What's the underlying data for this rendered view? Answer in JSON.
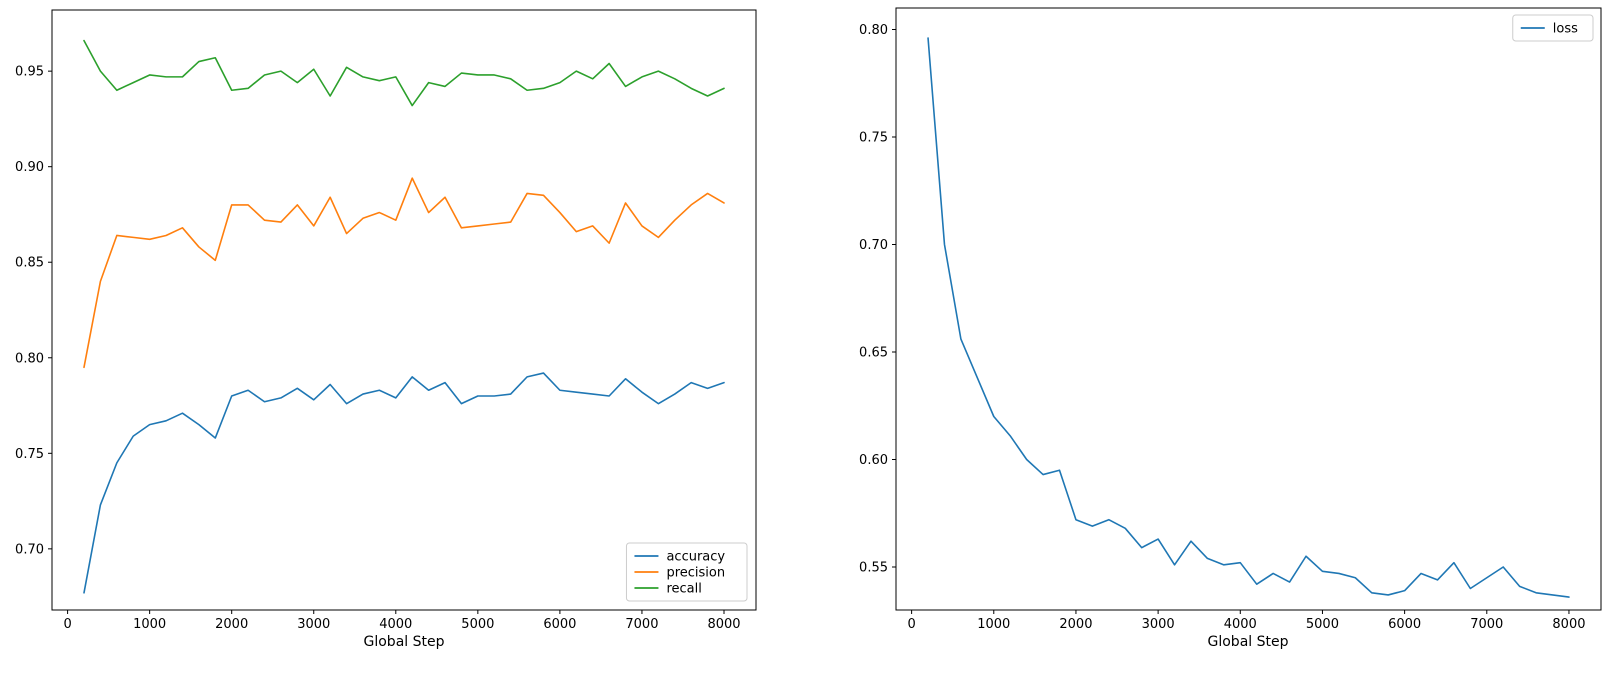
{
  "figure": {
    "background": "#ffffff",
    "text_color": "#000000",
    "spine_color": "#000000",
    "legend_border_color": "#cccccc"
  },
  "chart_data": [
    {
      "type": "line",
      "title": "",
      "xlabel": "Global Step",
      "ylabel": "",
      "grid": false,
      "xlim": [
        -190,
        8390
      ],
      "ylim": [
        0.668,
        0.982
      ],
      "xticks": [
        0,
        1000,
        2000,
        3000,
        4000,
        5000,
        6000,
        7000,
        8000
      ],
      "xtick_labels": [
        "0",
        "1000",
        "2000",
        "3000",
        "4000",
        "5000",
        "6000",
        "7000",
        "8000"
      ],
      "yticks": [
        0.7,
        0.75,
        0.8,
        0.85,
        0.9,
        0.95
      ],
      "ytick_labels": [
        "0.70",
        "0.75",
        "0.80",
        "0.85",
        "0.90",
        "0.95"
      ],
      "legend": {
        "position": "lower right",
        "entries": [
          "accuracy",
          "precision",
          "recall"
        ]
      },
      "x": [
        200,
        400,
        600,
        800,
        1000,
        1200,
        1400,
        1600,
        1800,
        2000,
        2200,
        2400,
        2600,
        2800,
        3000,
        3200,
        3400,
        3600,
        3800,
        4000,
        4200,
        4400,
        4600,
        4800,
        5000,
        5200,
        5400,
        5600,
        5800,
        6000,
        6200,
        6400,
        6600,
        6800,
        7000,
        7200,
        7400,
        7600,
        7800,
        8000
      ],
      "series": [
        {
          "name": "accuracy",
          "color": "#1f77b4",
          "values": [
            0.677,
            0.723,
            0.745,
            0.759,
            0.765,
            0.767,
            0.771,
            0.765,
            0.758,
            0.78,
            0.783,
            0.777,
            0.779,
            0.784,
            0.778,
            0.786,
            0.776,
            0.781,
            0.783,
            0.779,
            0.79,
            0.783,
            0.787,
            0.776,
            0.78,
            0.78,
            0.781,
            0.79,
            0.792,
            0.783,
            0.782,
            0.781,
            0.78,
            0.789,
            0.782,
            0.776,
            0.781,
            0.787,
            0.784,
            0.787
          ]
        },
        {
          "name": "precision",
          "color": "#ff7f0e",
          "values": [
            0.795,
            0.84,
            0.864,
            0.863,
            0.862,
            0.864,
            0.868,
            0.858,
            0.851,
            0.88,
            0.88,
            0.872,
            0.871,
            0.88,
            0.869,
            0.884,
            0.865,
            0.873,
            0.876,
            0.872,
            0.894,
            0.876,
            0.884,
            0.868,
            0.869,
            0.87,
            0.871,
            0.886,
            0.885,
            0.876,
            0.866,
            0.869,
            0.86,
            0.881,
            0.869,
            0.863,
            0.872,
            0.88,
            0.886,
            0.881
          ]
        },
        {
          "name": "recall",
          "color": "#2ca02c",
          "values": [
            0.966,
            0.95,
            0.94,
            0.944,
            0.948,
            0.947,
            0.947,
            0.955,
            0.957,
            0.94,
            0.941,
            0.948,
            0.95,
            0.944,
            0.951,
            0.937,
            0.952,
            0.947,
            0.945,
            0.947,
            0.932,
            0.944,
            0.942,
            0.949,
            0.948,
            0.948,
            0.946,
            0.94,
            0.941,
            0.944,
            0.95,
            0.946,
            0.954,
            0.942,
            0.947,
            0.95,
            0.946,
            0.941,
            0.937,
            0.941
          ]
        }
      ]
    },
    {
      "type": "line",
      "title": "",
      "xlabel": "Global Step",
      "ylabel": "",
      "grid": false,
      "xlim": [
        -190,
        8390
      ],
      "ylim": [
        0.53,
        0.81
      ],
      "xticks": [
        0,
        1000,
        2000,
        3000,
        4000,
        5000,
        6000,
        7000,
        8000
      ],
      "xtick_labels": [
        "0",
        "1000",
        "2000",
        "3000",
        "4000",
        "5000",
        "6000",
        "7000",
        "8000"
      ],
      "yticks": [
        0.55,
        0.6,
        0.65,
        0.7,
        0.75,
        0.8
      ],
      "ytick_labels": [
        "0.55",
        "0.60",
        "0.65",
        "0.70",
        "0.75",
        "0.80"
      ],
      "legend": {
        "position": "upper right",
        "entries": [
          "loss"
        ]
      },
      "x": [
        200,
        400,
        600,
        800,
        1000,
        1200,
        1400,
        1600,
        1800,
        2000,
        2200,
        2400,
        2600,
        2800,
        3000,
        3200,
        3400,
        3600,
        3800,
        4000,
        4200,
        4400,
        4600,
        4800,
        5000,
        5200,
        5400,
        5600,
        5800,
        6000,
        6200,
        6400,
        6600,
        6800,
        7000,
        7200,
        7400,
        7600,
        7800,
        8000
      ],
      "series": [
        {
          "name": "loss",
          "color": "#1f77b4",
          "values": [
            0.796,
            0.7,
            0.656,
            0.638,
            0.62,
            0.611,
            0.6,
            0.593,
            0.595,
            0.572,
            0.569,
            0.572,
            0.568,
            0.559,
            0.563,
            0.551,
            0.562,
            0.554,
            0.551,
            0.552,
            0.542,
            0.547,
            0.543,
            0.555,
            0.548,
            0.547,
            0.545,
            0.538,
            0.537,
            0.539,
            0.547,
            0.544,
            0.552,
            0.54,
            0.545,
            0.55,
            0.541,
            0.538,
            0.537,
            0.536
          ]
        }
      ]
    }
  ]
}
